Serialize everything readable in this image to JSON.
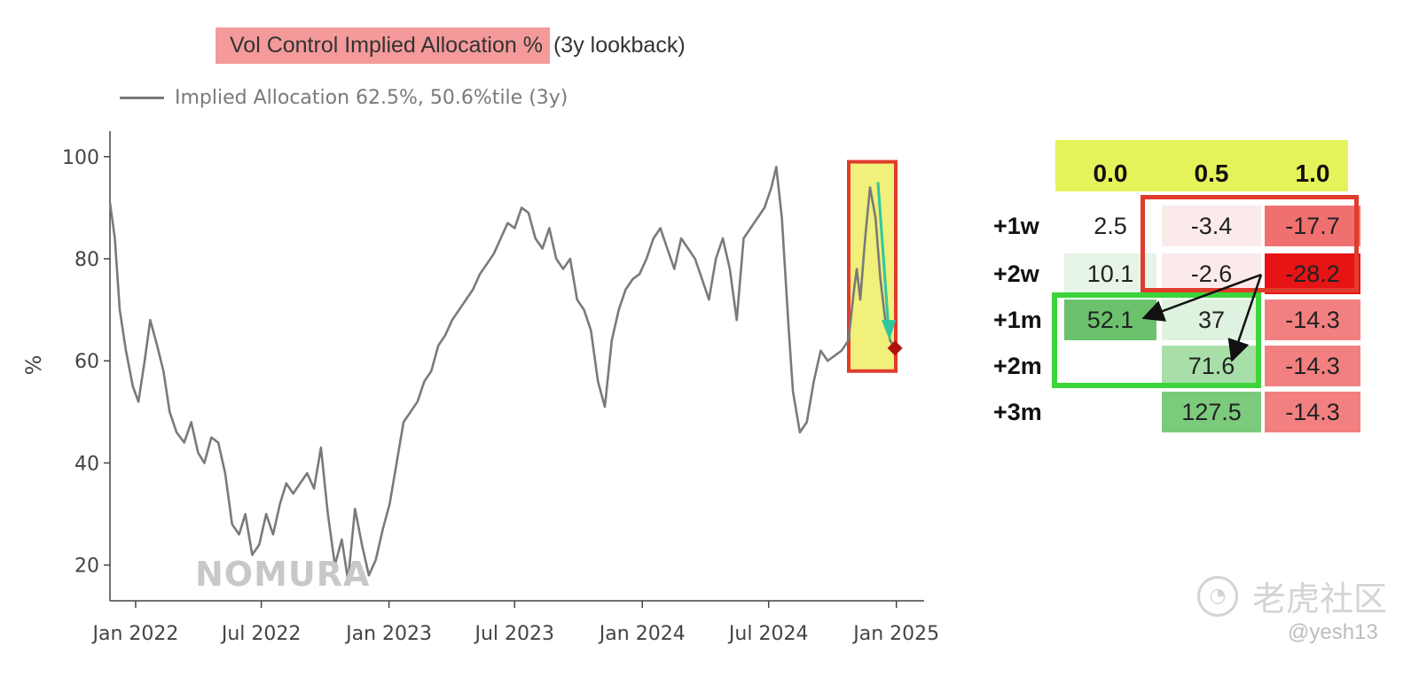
{
  "title": "Vol Control Implied Allocation %",
  "title_suffix": "(3y lookback)",
  "legend_label": "Implied Allocation 62.5%, 50.6%tile (3y)",
  "watermark_logo": "NOMURA",
  "watermark_site": "老虎社区",
  "watermark_user": "@yesh13",
  "colors": {
    "line": "#7a7a7a",
    "title_bg": "#f49a9a",
    "header_yellow": "#e4f35a",
    "highlight_yellow": "#f0f07a",
    "highlight_red": "#e03c2c",
    "green_box": "#3cd43c",
    "marker": "#b01010",
    "arrow_teal": "#2ec7a0"
  },
  "chart_data": {
    "type": "line",
    "title": "Vol Control Implied Allocation %",
    "ylabel": "%",
    "ylim": [
      13,
      105
    ],
    "yticks": [
      20,
      40,
      60,
      80,
      100
    ],
    "xlim": [
      "2021-11-25",
      "2025-02-10"
    ],
    "xticks": [
      "Jan 2022",
      "Jul 2022",
      "Jan 2023",
      "Jul 2023",
      "Jan 2024",
      "Jul 2024",
      "Jan 2025"
    ],
    "xtick_dates": [
      "2022-01-01",
      "2022-07-01",
      "2023-01-01",
      "2023-07-01",
      "2024-01-01",
      "2024-07-01",
      "2025-01-01"
    ],
    "series": [
      {
        "name": "Implied Allocation 62.5%, 50.6%tile (3y)",
        "x": [
          "2021-11-25",
          "2021-12-02",
          "2021-12-09",
          "2021-12-18",
          "2021-12-28",
          "2022-01-05",
          "2022-01-14",
          "2022-01-22",
          "2022-02-01",
          "2022-02-10",
          "2022-02-19",
          "2022-03-01",
          "2022-03-12",
          "2022-03-22",
          "2022-04-01",
          "2022-04-10",
          "2022-04-20",
          "2022-04-30",
          "2022-05-10",
          "2022-05-20",
          "2022-05-30",
          "2022-06-08",
          "2022-06-18",
          "2022-06-28",
          "2022-07-08",
          "2022-07-18",
          "2022-07-28",
          "2022-08-06",
          "2022-08-16",
          "2022-08-26",
          "2022-09-05",
          "2022-09-15",
          "2022-09-25",
          "2022-10-05",
          "2022-10-15",
          "2022-10-25",
          "2022-11-03",
          "2022-11-13",
          "2022-11-23",
          "2022-12-03",
          "2022-12-13",
          "2022-12-23",
          "2023-01-02",
          "2023-01-12",
          "2023-01-22",
          "2023-02-01",
          "2023-02-11",
          "2023-02-21",
          "2023-03-03",
          "2023-03-13",
          "2023-03-23",
          "2023-04-02",
          "2023-04-12",
          "2023-04-22",
          "2023-05-02",
          "2023-05-12",
          "2023-05-22",
          "2023-06-01",
          "2023-06-11",
          "2023-06-21",
          "2023-07-01",
          "2023-07-11",
          "2023-07-21",
          "2023-07-31",
          "2023-08-10",
          "2023-08-20",
          "2023-08-30",
          "2023-09-09",
          "2023-09-19",
          "2023-09-29",
          "2023-10-09",
          "2023-10-19",
          "2023-10-29",
          "2023-11-08",
          "2023-11-18",
          "2023-11-28",
          "2023-12-08",
          "2023-12-18",
          "2023-12-28",
          "2024-01-07",
          "2024-01-17",
          "2024-01-27",
          "2024-02-06",
          "2024-02-16",
          "2024-02-26",
          "2024-03-07",
          "2024-03-17",
          "2024-03-27",
          "2024-04-06",
          "2024-04-16",
          "2024-04-26",
          "2024-05-06",
          "2024-05-16",
          "2024-05-26",
          "2024-06-05",
          "2024-06-15",
          "2024-06-25",
          "2024-07-05",
          "2024-07-12",
          "2024-07-20",
          "2024-07-30",
          "2024-08-05",
          "2024-08-15",
          "2024-08-25",
          "2024-09-04",
          "2024-09-14",
          "2024-09-24",
          "2024-10-04",
          "2024-10-14",
          "2024-10-24",
          "2024-11-01",
          "2024-11-05",
          "2024-11-10",
          "2024-11-17",
          "2024-11-24",
          "2024-12-02",
          "2024-12-09",
          "2024-12-16",
          "2024-12-23",
          "2024-12-30"
        ],
        "y": [
          91,
          84,
          70,
          62,
          55,
          52,
          60,
          68,
          63,
          58,
          50,
          46,
          44,
          48,
          42,
          40,
          45,
          44,
          38,
          28,
          26,
          30,
          22,
          24,
          30,
          26,
          32,
          36,
          34,
          36,
          38,
          35,
          43,
          30,
          20,
          25,
          17,
          31,
          24,
          18,
          21,
          27,
          32,
          40,
          48,
          50,
          52,
          56,
          58,
          63,
          65,
          68,
          70,
          72,
          74,
          77,
          79,
          81,
          84,
          87,
          86,
          90,
          89,
          84,
          82,
          86,
          80,
          78,
          80,
          72,
          70,
          66,
          56,
          51,
          64,
          70,
          74,
          76,
          77,
          80,
          84,
          86,
          82,
          78,
          84,
          82,
          80,
          76,
          72,
          80,
          84,
          78,
          68,
          84,
          86,
          88,
          90,
          94,
          98,
          88,
          66,
          54,
          46,
          48,
          56,
          62,
          60,
          61,
          62,
          64,
          74,
          78,
          72,
          84,
          94,
          88,
          76,
          68,
          64,
          62.5
        ]
      }
    ],
    "table": {
      "columns": [
        "0.0",
        "0.5",
        "1.0"
      ],
      "rows": [
        {
          "label": "+1w",
          "values": [
            "2.5",
            "-3.4",
            "-17.7"
          ]
        },
        {
          "label": "+2w",
          "values": [
            "10.1",
            "-2.6",
            "-28.2"
          ]
        },
        {
          "label": "+1m",
          "values": [
            "52.1",
            "37",
            "-14.3"
          ]
        },
        {
          "label": "+2m",
          "values": [
            "",
            "71.6",
            "-14.3"
          ]
        },
        {
          "label": "+3m",
          "values": [
            "",
            "127.5",
            "-14.3"
          ]
        }
      ],
      "cell_colors": [
        [
          "#ffffff",
          "#fbeaea",
          "#f07070"
        ],
        [
          "#e6f5e6",
          "#fbeaea",
          "#e61414"
        ],
        [
          "#6cc26c",
          "#dff2df",
          "#f28080"
        ],
        [
          "#ffffff",
          "#a8dfa8",
          "#f28080"
        ],
        [
          "#ffffff",
          "#7cca7c",
          "#f28080"
        ]
      ]
    }
  }
}
